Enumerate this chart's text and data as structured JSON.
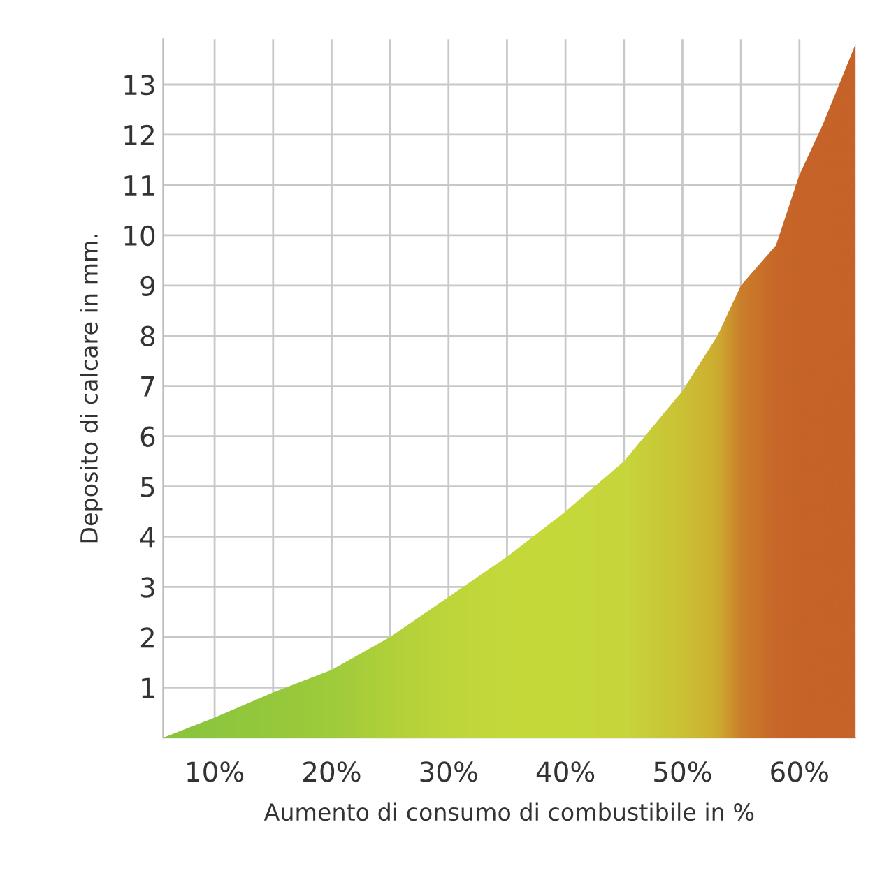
{
  "chart_data": {
    "type": "area",
    "xlabel": "Aumento di consumo di combustibile in %",
    "ylabel": "Deposito di calcare in mm.",
    "x": [
      5.6,
      10,
      15,
      20,
      25,
      30,
      35,
      40,
      45,
      50,
      53,
      55,
      58,
      60,
      62,
      64.8
    ],
    "series": [
      {
        "values": [
          0,
          0.4,
          0.9,
          1.35,
          2.0,
          2.8,
          3.6,
          4.5,
          5.5,
          6.9,
          8.0,
          9.0,
          9.8,
          11.2,
          12.2,
          13.8
        ],
        "colors": [
          "#8cc43c",
          "#8fc840",
          "#9acb3c",
          "#a8d03a",
          "#c4d83a",
          "#d9e03a",
          "#e2e43a",
          "#e4e43a",
          "#e6e03a",
          "#ecc032",
          "#f0a02a",
          "#ec5a22",
          "#e6361e",
          "#e5321e",
          "#e3301e",
          "#e3301e"
        ]
      }
    ],
    "xlim": [
      5.6,
      64.8
    ],
    "ylim": [
      0,
      13.9
    ],
    "xticks": [
      {
        "value": 10,
        "label": "10%"
      },
      {
        "value": 15,
        "label": null
      },
      {
        "value": 20,
        "label": "20%"
      },
      {
        "value": 25,
        "label": null
      },
      {
        "value": 30,
        "label": "30%"
      },
      {
        "value": 35,
        "label": null
      },
      {
        "value": 40,
        "label": "40%"
      },
      {
        "value": 45,
        "label": null
      },
      {
        "value": 50,
        "label": "50%"
      },
      {
        "value": 55,
        "label": null
      },
      {
        "value": 60,
        "label": "60%"
      }
    ],
    "yticks": [
      1,
      2,
      3,
      4,
      5,
      6,
      7,
      8,
      9,
      10,
      11,
      12,
      13
    ],
    "grid": true
  }
}
